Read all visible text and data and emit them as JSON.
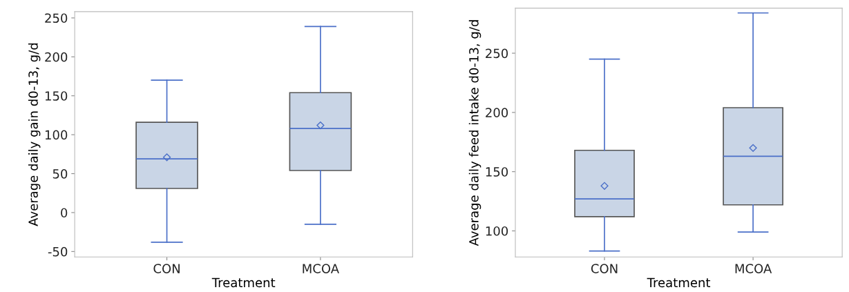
{
  "chart_data": [
    {
      "type": "box",
      "categories": [
        "CON",
        "MCOA"
      ],
      "xlabel": "Treatment",
      "ylabel": "Average daily gain d0-13, g/d",
      "ylim": [
        -57,
        258
      ],
      "yticks": [
        -50,
        0,
        50,
        100,
        150,
        200,
        250
      ],
      "grid": false,
      "legend": false,
      "marker": "diamond",
      "color": "#c9d5e6",
      "boxes": [
        {
          "low": -38,
          "q1": 31,
          "median": 69,
          "q3": 116,
          "high": 170,
          "mean": 71
        },
        {
          "low": -15,
          "q1": 54,
          "median": 108,
          "q3": 154,
          "high": 239,
          "mean": 112
        }
      ]
    },
    {
      "type": "box",
      "categories": [
        "CON",
        "MCOA"
      ],
      "xlabel": "Treatment",
      "ylabel": "Average daily feed intake d0-13, g/d",
      "ylim": [
        78,
        288
      ],
      "yticks": [
        100,
        150,
        200,
        250
      ],
      "grid": false,
      "legend": false,
      "marker": "diamond",
      "color": "#c9d5e6",
      "boxes": [
        {
          "low": 83,
          "q1": 112,
          "median": 127,
          "q3": 168,
          "high": 245,
          "mean": 138
        },
        {
          "low": 99,
          "q1": 122,
          "median": 163,
          "q3": 204,
          "high": 284,
          "mean": 170
        }
      ]
    }
  ]
}
